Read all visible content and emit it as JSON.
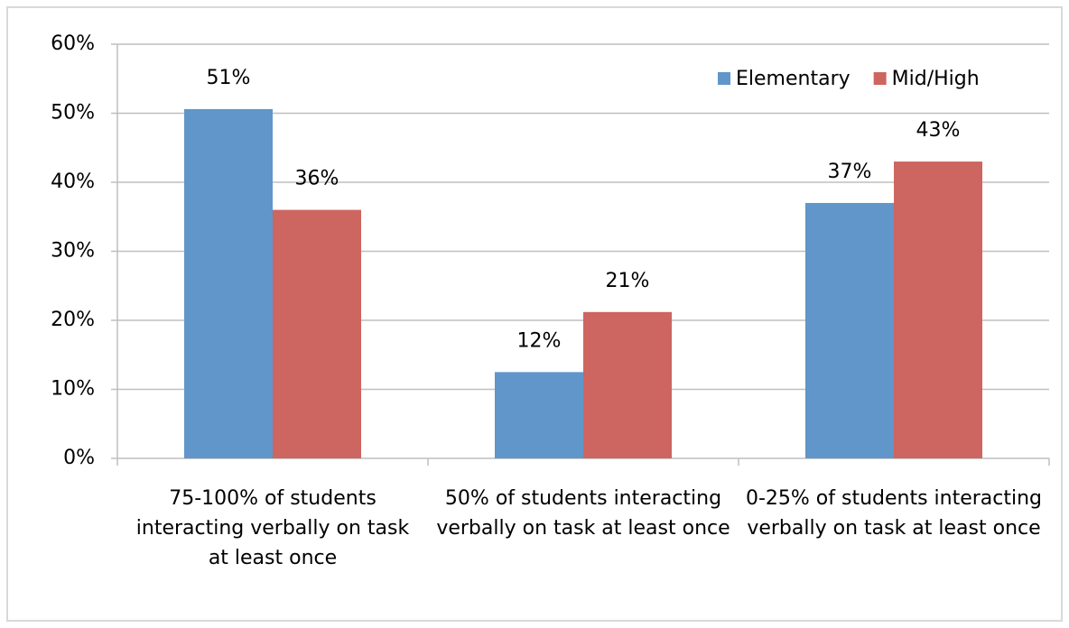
{
  "chart_data": {
    "type": "bar",
    "categories": [
      "75-100% of students interacting verbally on task at least once",
      "50% of students interacting verbally on task at least once",
      "0-25% of students interacting verbally on task at least once"
    ],
    "series": [
      {
        "name": "Elementary",
        "color": "#6096c9",
        "values": [
          50.6,
          12.5,
          37
        ],
        "value_labels": [
          "51%",
          "12%",
          "37%"
        ]
      },
      {
        "name": "Mid/High",
        "color": "#cd6560",
        "values": [
          36,
          21.2,
          43
        ],
        "value_labels": [
          "36%",
          "21%",
          "43%"
        ]
      }
    ],
    "ylim": [
      0,
      60
    ],
    "yticks": [
      {
        "value": 0,
        "label": "0%"
      },
      {
        "value": 10,
        "label": "10%"
      },
      {
        "value": 20,
        "label": "20%"
      },
      {
        "value": 30,
        "label": "30%"
      },
      {
        "value": 40,
        "label": "40%"
      },
      {
        "value": 50,
        "label": "50%"
      },
      {
        "value": 60,
        "label": "60%"
      }
    ],
    "grid": true,
    "legend": "top-right"
  }
}
